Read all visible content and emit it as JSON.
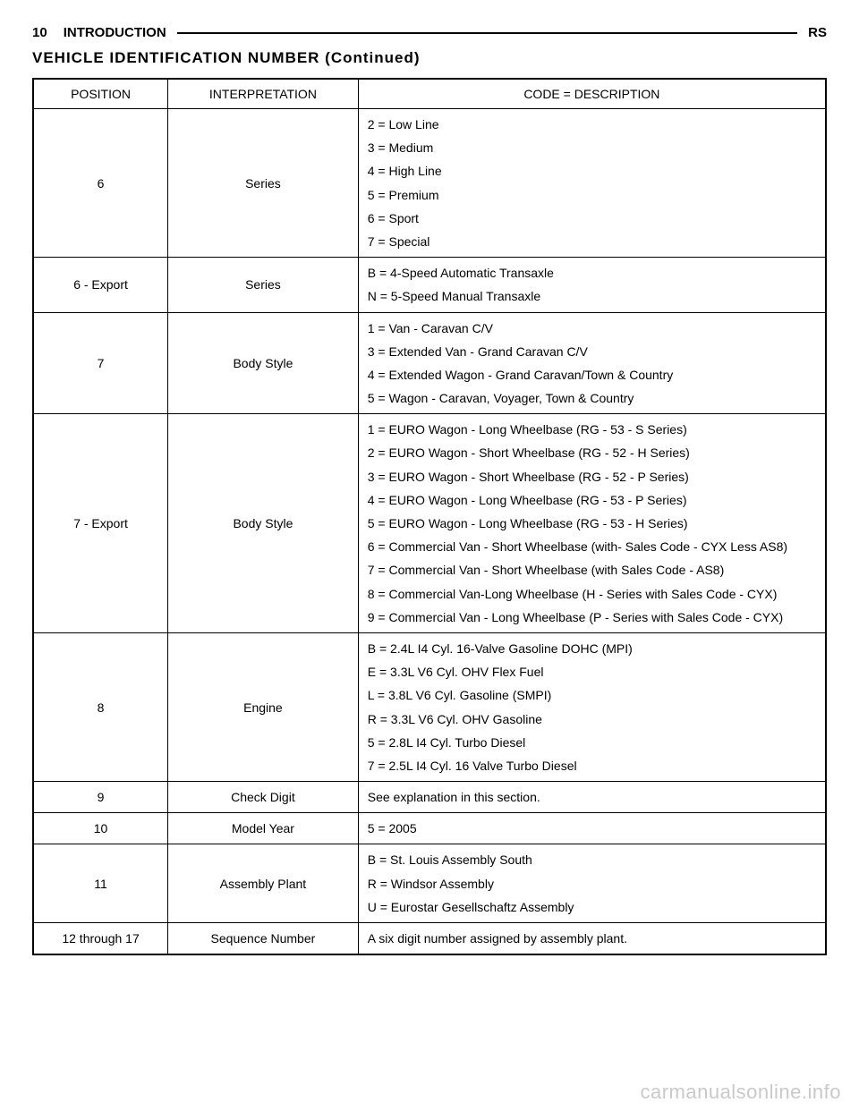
{
  "page": {
    "number": "10",
    "section": "INTRODUCTION",
    "doccode": "RS",
    "subheading": "VEHICLE IDENTIFICATION NUMBER (Continued)"
  },
  "table": {
    "headers": {
      "col1": "POSITION",
      "col2": "INTERPRETATION",
      "col3": "CODE = DESCRIPTION"
    },
    "col_widths_pct": [
      17,
      24,
      59
    ],
    "border_color": "#000000",
    "font_size_pt": 14,
    "rows": [
      {
        "position": "6",
        "interpretation": "Series",
        "descriptions": [
          "2 = Low Line",
          "3 = Medium",
          "4 = High Line",
          "5 = Premium",
          "6 = Sport",
          "7 = Special"
        ]
      },
      {
        "position": "6 - Export",
        "interpretation": "Series",
        "descriptions": [
          "B = 4-Speed Automatic Transaxle",
          "N = 5-Speed Manual Transaxle"
        ]
      },
      {
        "position": "7",
        "interpretation": "Body Style",
        "descriptions": [
          "1 = Van - Caravan C/V",
          "3 = Extended Van - Grand Caravan C/V",
          "4 = Extended Wagon - Grand Caravan/Town & Country",
          "5 = Wagon - Caravan, Voyager, Town & Country"
        ]
      },
      {
        "position": "7 - Export",
        "interpretation": "Body Style",
        "descriptions": [
          "1 = EURO Wagon - Long Wheelbase (RG - 53 - S Series)",
          "2 = EURO Wagon - Short Wheelbase (RG - 52 - H Series)",
          "3 = EURO Wagon - Short Wheelbase (RG - 52 - P Series)",
          "4 = EURO Wagon - Long Wheelbase (RG - 53 - P Series)",
          "5 = EURO Wagon - Long Wheelbase (RG - 53 - H Series)",
          "6 = Commercial Van - Short Wheelbase (with- Sales Code - CYX Less AS8)",
          "7 = Commercial Van - Short Wheelbase (with Sales Code - AS8)",
          "8 = Commercial Van-Long Wheelbase (H - Series with Sales Code - CYX)",
          "9 = Commercial Van - Long Wheelbase (P - Series with Sales Code - CYX)"
        ]
      },
      {
        "position": "8",
        "interpretation": "Engine",
        "descriptions": [
          "B = 2.4L I4 Cyl. 16-Valve Gasoline DOHC (MPI)",
          "E = 3.3L V6 Cyl. OHV Flex Fuel",
          "L = 3.8L V6 Cyl. Gasoline (SMPI)",
          "R = 3.3L V6 Cyl. OHV Gasoline",
          "5 = 2.8L I4 Cyl. Turbo Diesel",
          "7 = 2.5L I4 Cyl. 16 Valve Turbo Diesel"
        ]
      },
      {
        "position": "9",
        "interpretation": "Check Digit",
        "descriptions": [
          "See explanation in this section."
        ]
      },
      {
        "position": "10",
        "interpretation": "Model Year",
        "descriptions": [
          "5 = 2005"
        ]
      },
      {
        "position": "11",
        "interpretation": "Assembly Plant",
        "descriptions": [
          "B = St. Louis Assembly South",
          "R = Windsor Assembly",
          "U = Eurostar Gesellschaftz Assembly"
        ]
      },
      {
        "position": "12 through 17",
        "interpretation": "Sequence Number",
        "descriptions": [
          "A six digit number assigned by assembly plant."
        ]
      }
    ]
  },
  "watermark": "carmanualsonline.info"
}
